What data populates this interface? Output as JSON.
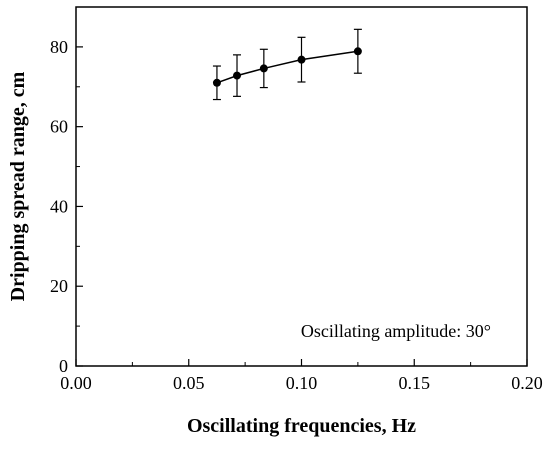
{
  "chart_data": {
    "type": "line",
    "xlabel": "Oscillating frequencies, Hz",
    "ylabel": "Dripping spread range, cm",
    "xlim": [
      0,
      0.2
    ],
    "ylim": [
      0,
      90
    ],
    "x_ticks": [
      0.0,
      0.05,
      0.1,
      0.15,
      0.2
    ],
    "x_tick_labels": [
      "0.00",
      "0.05",
      "0.10",
      "0.15",
      "0.20"
    ],
    "y_ticks": [
      0,
      20,
      40,
      60,
      80
    ],
    "y_tick_labels": [
      "0",
      "20",
      "40",
      "60",
      "80"
    ],
    "grid": false,
    "annotation": "Oscillating amplitude: 30°",
    "series": [
      {
        "x": [
          0.0625,
          0.0714,
          0.0833,
          0.1,
          0.125
        ],
        "y": [
          71.0,
          72.8,
          74.6,
          76.8,
          78.9
        ],
        "err": [
          4.2,
          5.2,
          4.8,
          5.6,
          5.5
        ]
      }
    ],
    "colors": {
      "line": "#000000",
      "marker": "#000000"
    }
  }
}
